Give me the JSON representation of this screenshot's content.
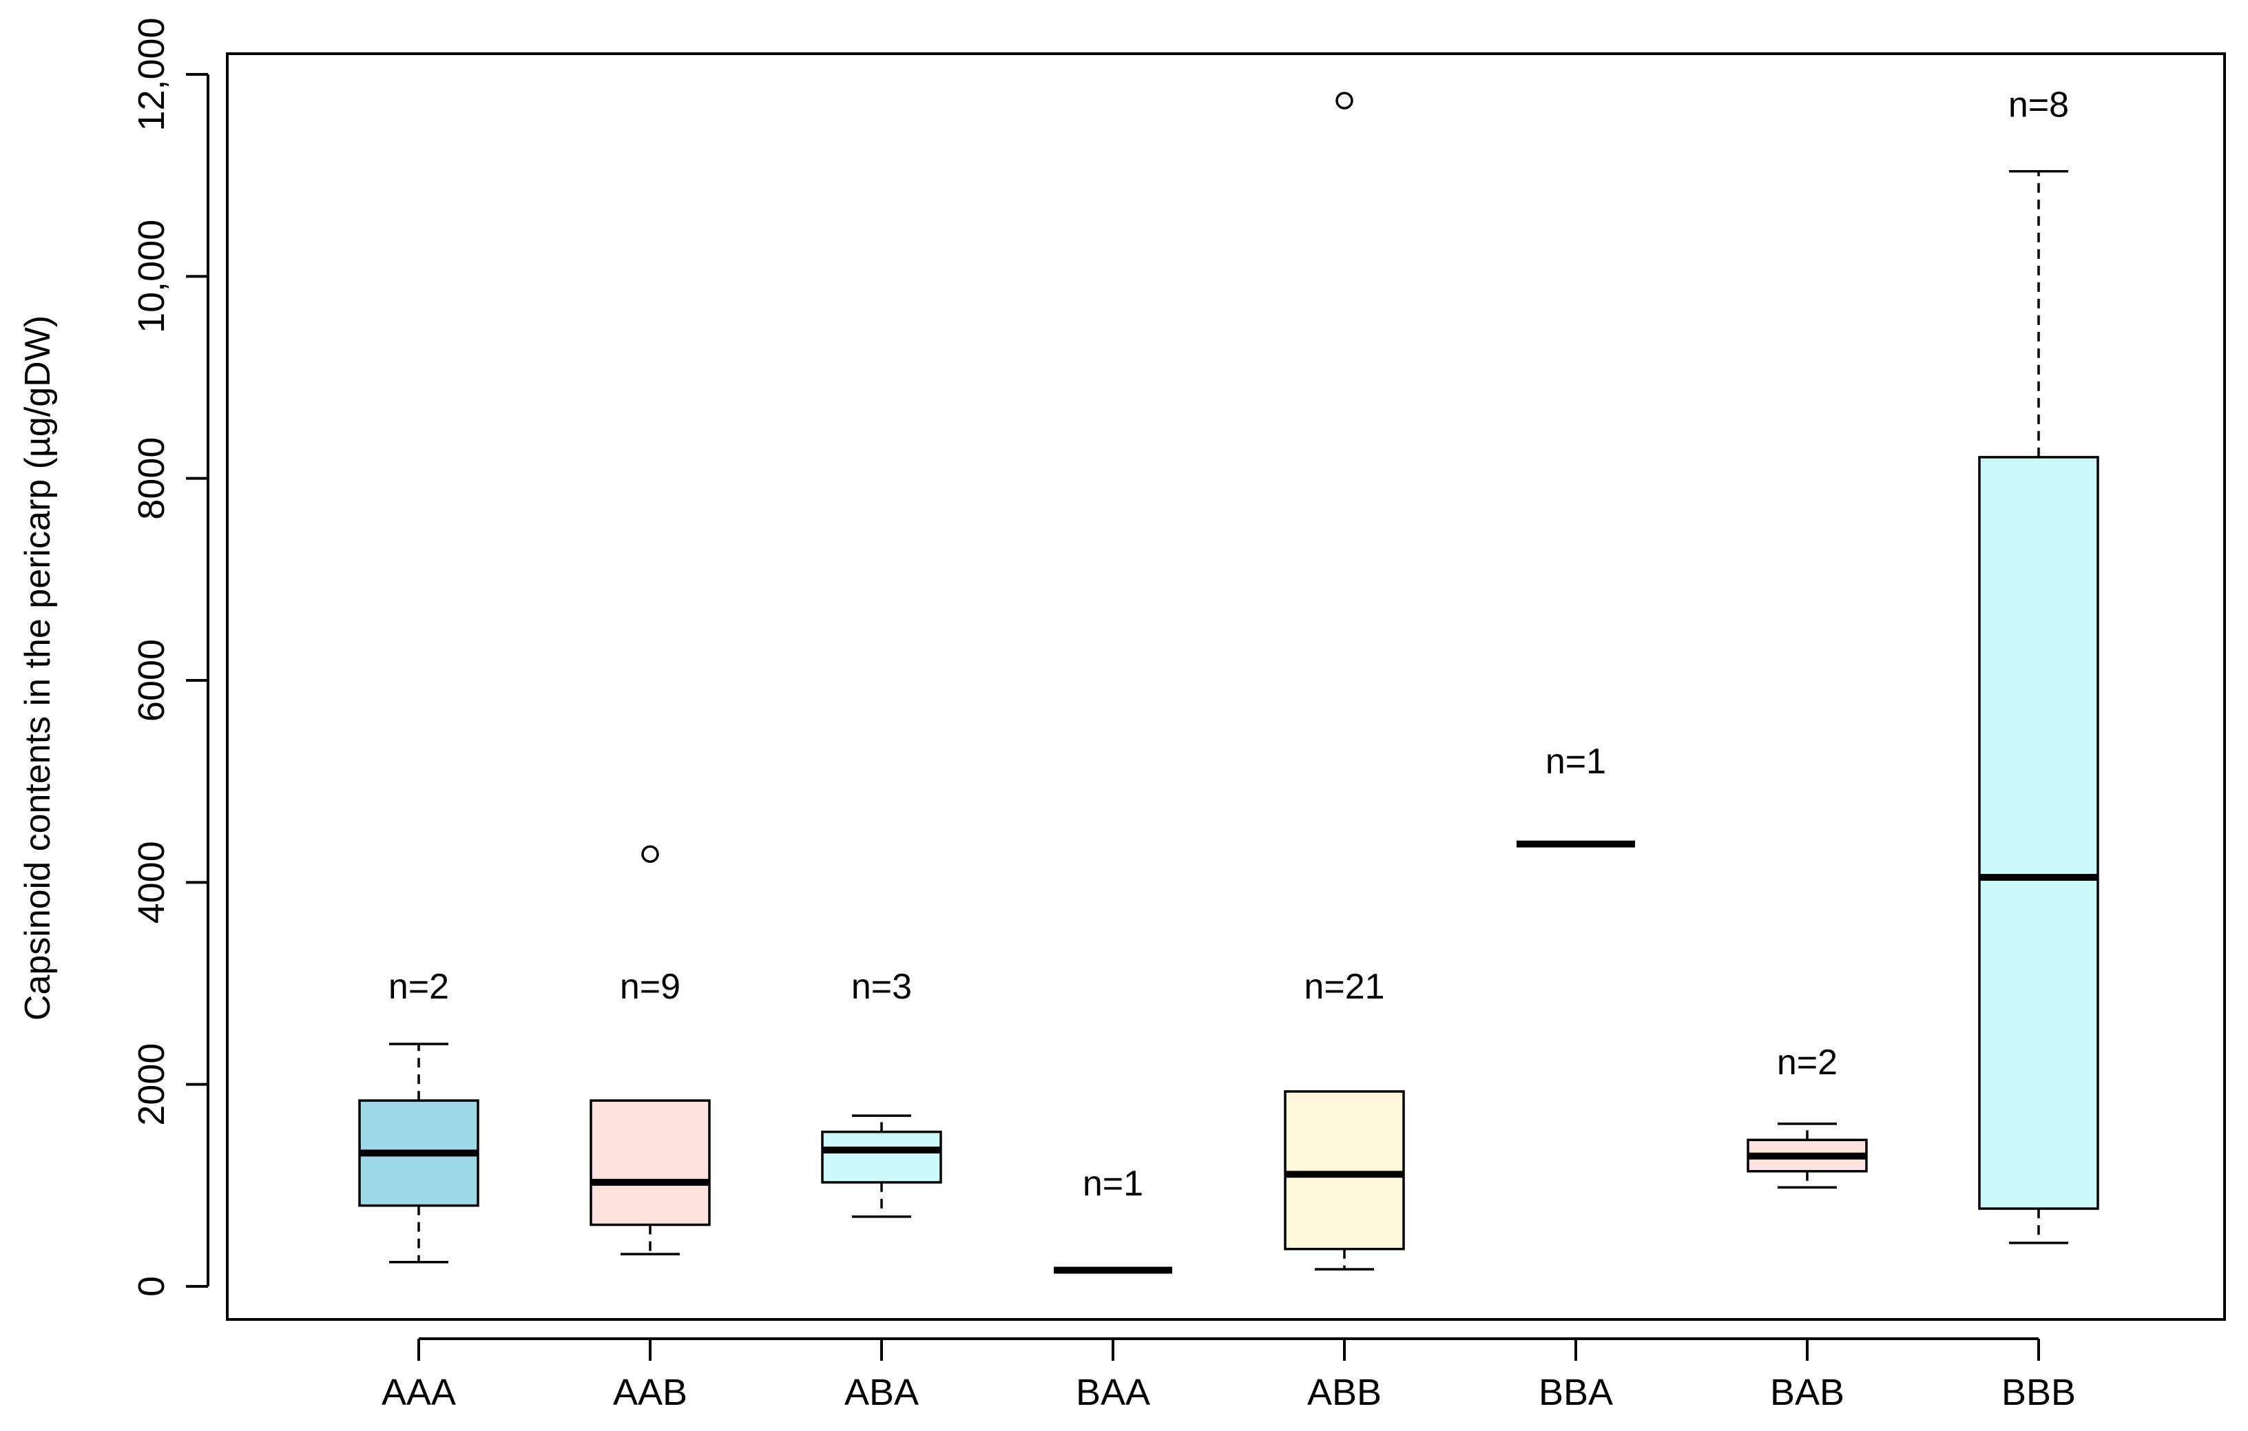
{
  "chart_data": {
    "type": "box",
    "title": "",
    "xlabel": "",
    "ylabel": "Capsinoid contents in the pericarp (µg/gDW)",
    "ylim": [
      -200,
      12200
    ],
    "yticks": [
      0,
      2000,
      4000,
      6000,
      8000,
      10000,
      12000
    ],
    "ytick_labels": [
      "0",
      "2000",
      "4000",
      "6000",
      "8000",
      "10,000",
      "12,000"
    ],
    "grid": false,
    "categories": [
      "AAA",
      "AAB",
      "ABA",
      "BAA",
      "ABB",
      "BBA",
      "BAB",
      "BBB"
    ],
    "boxes": [
      {
        "category": "AAA",
        "n": "n=2",
        "min": 240,
        "q1": 800,
        "median": 1320,
        "q3": 1840,
        "max": 2400,
        "outliers": [],
        "fill": "#9dd9e8"
      },
      {
        "category": "AAB",
        "n": "n=9",
        "min": 320,
        "q1": 610,
        "median": 1030,
        "q3": 1840,
        "max": 1840,
        "outliers": [
          4280
        ],
        "fill": "#fde3df"
      },
      {
        "category": "ABA",
        "n": "n=3",
        "min": 690,
        "q1": 1030,
        "median": 1350,
        "q3": 1530,
        "max": 1690,
        "outliers": [],
        "fill": "#ccfafa"
      },
      {
        "category": "BAA",
        "n": "n=1",
        "min": 160,
        "q1": 160,
        "median": 160,
        "q3": 160,
        "max": 160,
        "outliers": [],
        "fill": "#ffffff"
      },
      {
        "category": "ABB",
        "n": "n=21",
        "min": 170,
        "q1": 370,
        "median": 1110,
        "q3": 1930,
        "max": 1930,
        "outliers": [
          11740
        ],
        "fill": "#fff7dc"
      },
      {
        "category": "BBA",
        "n": "n=1",
        "min": 4380,
        "q1": 4380,
        "median": 4380,
        "q3": 4380,
        "max": 4380,
        "outliers": [],
        "fill": "#ffffff"
      },
      {
        "category": "BAB",
        "n": "n=2",
        "min": 980,
        "q1": 1140,
        "median": 1290,
        "q3": 1450,
        "max": 1610,
        "outliers": [],
        "fill": "#fde3df"
      },
      {
        "category": "BBB",
        "n": "n=8",
        "min": 430,
        "q1": 770,
        "median": 4050,
        "q3": 8210,
        "max": 11040,
        "outliers": [],
        "fill": "#ccfafa"
      }
    ],
    "n_label_values": [
      2850,
      2850,
      2850,
      900,
      2850,
      5080,
      2100,
      11580
    ]
  }
}
